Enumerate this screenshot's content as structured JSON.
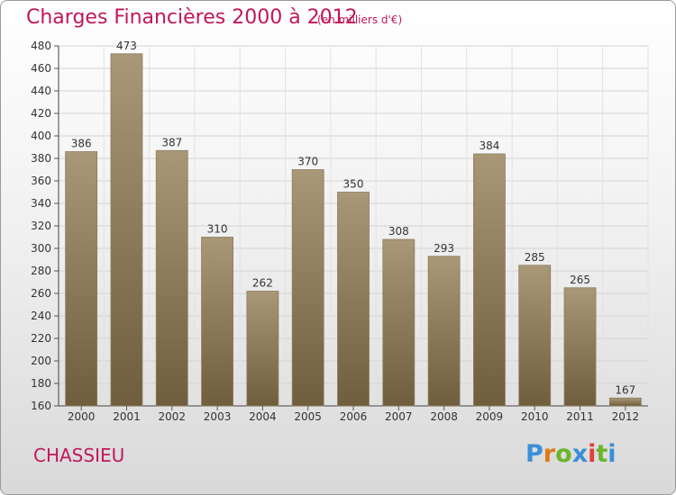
{
  "title": "Charges Financières 2000 à 2012",
  "subtitle": "(en milliers d'€)",
  "commune": "CHASSIEU",
  "brand": {
    "letters": [
      "P",
      "r",
      "o",
      "x",
      "i",
      "t",
      "i"
    ],
    "colors": [
      "#3a8fd8",
      "#e07b1a",
      "#6bb52b",
      "#3a8fd8",
      "#e0403a",
      "#6bb52b",
      "#3a8fd8"
    ]
  },
  "colors": {
    "title": "#c0185a",
    "bar_top": "#a89878",
    "bar_bottom": "#6f5e3e"
  },
  "chart_data": {
    "type": "bar",
    "title": "Charges Financières 2000 à 2012",
    "subtitle": "(en milliers d'€)",
    "categories": [
      "2000",
      "2001",
      "2002",
      "2003",
      "2004",
      "2005",
      "2006",
      "2007",
      "2008",
      "2009",
      "2010",
      "2011",
      "2012"
    ],
    "values": [
      386,
      473,
      387,
      310,
      262,
      370,
      350,
      308,
      293,
      384,
      285,
      265,
      167
    ],
    "ylim": [
      160,
      480
    ],
    "yticks": [
      160,
      180,
      200,
      220,
      240,
      260,
      280,
      300,
      320,
      340,
      360,
      380,
      400,
      420,
      440,
      460,
      480
    ],
    "xlabel": "",
    "ylabel": "",
    "grid": true
  }
}
